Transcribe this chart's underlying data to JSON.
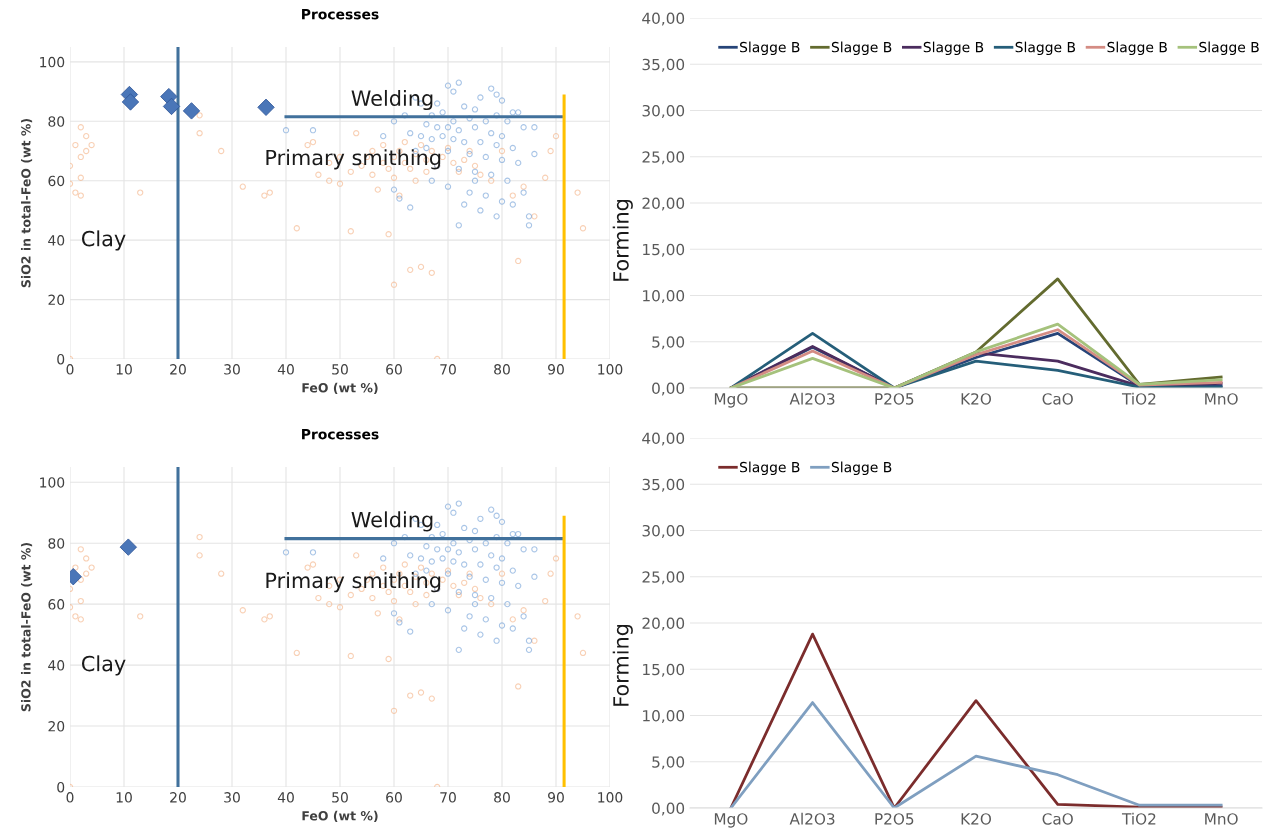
{
  "chart_data": [
    {
      "type": "scatter",
      "title": "Processes",
      "xlabel": "FeO (wt %)",
      "ylabel": "SiO2 in total-FeO (wt %)",
      "xlim": [
        0,
        100
      ],
      "ylim": [
        0,
        105
      ],
      "xticks": [
        0,
        10,
        20,
        30,
        40,
        50,
        60,
        70,
        80,
        90,
        100
      ],
      "yticks": [
        0,
        20,
        40,
        60,
        80,
        100
      ],
      "grid": true,
      "annotations": [
        "Welding",
        "Primary smithing",
        "Clay",
        "Forming"
      ],
      "series": [
        {
          "type": "scatter",
          "marker": "circle",
          "color": "#f4b183",
          "x": [
            0,
            0,
            1,
            2,
            2,
            3,
            3,
            4,
            1,
            2,
            2,
            13,
            24,
            24,
            28,
            32,
            36,
            37,
            42,
            44,
            45,
            46,
            48,
            48,
            50,
            50,
            52,
            52,
            53,
            54,
            55,
            56,
            56,
            57,
            58,
            58,
            59,
            59,
            60,
            60,
            60,
            61,
            61,
            62,
            62,
            63,
            63,
            64,
            64,
            65,
            65,
            66,
            66,
            67,
            67,
            68,
            69,
            70,
            71,
            72,
            73,
            74,
            75,
            76,
            78,
            80,
            82,
            83,
            84,
            86,
            88,
            89,
            90,
            94,
            95,
            68,
            0
          ],
          "values": [
            65,
            59,
            72,
            78,
            68,
            70,
            75,
            72,
            56,
            55,
            61,
            56,
            82,
            76,
            70,
            58,
            55,
            56,
            44,
            72,
            73,
            62,
            60,
            66,
            68,
            59,
            63,
            43,
            76,
            65,
            68,
            62,
            70,
            57,
            66,
            72,
            64,
            42,
            68,
            61,
            25,
            70,
            55,
            66,
            73,
            64,
            30,
            69,
            60,
            72,
            31,
            67,
            63,
            70,
            29,
            65,
            68,
            71,
            66,
            63,
            67,
            70,
            65,
            62,
            60,
            70,
            55,
            33,
            58,
            48,
            61,
            70,
            75,
            56,
            44,
            0,
            0
          ]
        },
        {
          "type": "scatter",
          "marker": "circle",
          "color": "#6f9fd6",
          "x": [
            70,
            71,
            72,
            78,
            79,
            76,
            80,
            64,
            65,
            68,
            73,
            75,
            82,
            83,
            67,
            69,
            71,
            74,
            77,
            79,
            81,
            66,
            68,
            70,
            72,
            75,
            78,
            80,
            84,
            86,
            63,
            65,
            67,
            69,
            71,
            73,
            76,
            79,
            82,
            64,
            66,
            70,
            74,
            77,
            80,
            83,
            68,
            72,
            75,
            78,
            81,
            70,
            74,
            77,
            80,
            73,
            76,
            79,
            85,
            85,
            82,
            63,
            61,
            60,
            58,
            60,
            62,
            45,
            40,
            84,
            72,
            75,
            67,
            86
          ],
          "values": [
            92,
            90,
            93,
            91,
            89,
            88,
            87,
            88,
            86,
            86,
            85,
            84,
            83,
            83,
            82,
            83,
            80,
            81,
            80,
            82,
            80,
            79,
            78,
            78,
            77,
            78,
            76,
            75,
            78,
            78,
            76,
            75,
            74,
            75,
            74,
            73,
            73,
            72,
            71,
            70,
            71,
            70,
            69,
            68,
            67,
            66,
            65,
            64,
            63,
            62,
            60,
            58,
            56,
            55,
            53,
            52,
            50,
            48,
            48,
            45,
            52,
            51,
            54,
            57,
            75,
            80,
            82,
            77,
            77,
            56,
            45,
            60,
            60,
            69
          ]
        },
        {
          "type": "scatter",
          "marker": "diamond",
          "color": "#4a76b8",
          "x": [
            11,
            11.2,
            18.3,
            18.8,
            22.5,
            36.3
          ],
          "values": [
            89,
            86.5,
            88.3,
            85,
            83.5,
            84.7
          ]
        },
        {
          "type": "line",
          "color": "#41719c",
          "x": [
            20,
            20
          ],
          "values": [
            0,
            105
          ]
        },
        {
          "type": "line",
          "color": "#41719c",
          "x": [
            40,
            91
          ],
          "values": [
            81.5,
            81.5
          ]
        },
        {
          "type": "line",
          "color": "#ffc000",
          "x": [
            91.5,
            91.5
          ],
          "values": [
            0,
            88.5
          ]
        }
      ]
    },
    {
      "type": "line",
      "categories": [
        "MgO",
        "Al2O3",
        "P2O5",
        "K2O",
        "CaO",
        "TiO2",
        "MnO"
      ],
      "ylim": [
        0,
        40
      ],
      "yticks": [
        {
          "value": 0,
          "label": "0,00"
        },
        {
          "value": 5,
          "label": "5,00"
        },
        {
          "value": 10,
          "label": "10,00"
        },
        {
          "value": 15,
          "label": "15,00"
        },
        {
          "value": 20,
          "label": "20,00"
        },
        {
          "value": 25,
          "label": "25,00"
        },
        {
          "value": 30,
          "label": "30,00"
        },
        {
          "value": 35,
          "label": "35,00"
        },
        {
          "value": 40,
          "label": "40,00"
        }
      ],
      "grid": "y",
      "legend": "top left",
      "series": [
        {
          "name": "Slagge B",
          "color": "#264478",
          "values": [
            0,
            4.4,
            0,
            3.3,
            5.9,
            0.2,
            0.2
          ]
        },
        {
          "name": "Slagge B",
          "color": "#636b2f",
          "values": [
            0,
            0,
            0,
            3.9,
            11.8,
            0.4,
            1.2
          ]
        },
        {
          "name": "Slagge B",
          "color": "#4b2c5e",
          "values": [
            0,
            4.5,
            0,
            3.8,
            2.9,
            0.2,
            0.5
          ]
        },
        {
          "name": "Slagge B",
          "color": "#255e79",
          "values": [
            0,
            5.9,
            0,
            2.9,
            1.9,
            0.1,
            0.1
          ]
        },
        {
          "name": "Slagge B",
          "color": "#d48c84",
          "values": [
            0,
            4.0,
            0,
            3.6,
            6.3,
            0.3,
            0.6
          ]
        },
        {
          "name": "Slagge B",
          "color": "#a5c27c",
          "values": [
            0,
            3.2,
            0,
            3.9,
            6.9,
            0.4,
            0.9
          ]
        }
      ]
    },
    {
      "type": "scatter",
      "title": "Processes",
      "xlabel": "FeO (wt %)",
      "ylabel": "SiO2 in total-FeO (wt %)",
      "xlim": [
        0,
        100
      ],
      "ylim": [
        0,
        105
      ],
      "xticks": [
        0,
        10,
        20,
        30,
        40,
        50,
        60,
        70,
        80,
        90,
        100
      ],
      "yticks": [
        0,
        20,
        40,
        60,
        80,
        100
      ],
      "grid": true,
      "annotations": [
        "Welding",
        "Primary smithing",
        "Clay",
        "Forming"
      ],
      "series": [
        {
          "type": "scatter",
          "marker": "circle",
          "color": "#f4b183",
          "x": [
            0,
            0,
            1,
            2,
            2,
            3,
            3,
            4,
            1,
            2,
            2,
            13,
            24,
            24,
            28,
            32,
            36,
            37,
            42,
            44,
            45,
            46,
            48,
            48,
            50,
            50,
            52,
            52,
            53,
            54,
            55,
            56,
            56,
            57,
            58,
            58,
            59,
            59,
            60,
            60,
            60,
            61,
            61,
            62,
            62,
            63,
            63,
            64,
            64,
            65,
            65,
            66,
            66,
            67,
            67,
            68,
            69,
            70,
            71,
            72,
            73,
            74,
            75,
            76,
            78,
            80,
            82,
            83,
            84,
            86,
            88,
            89,
            90,
            94,
            95,
            68,
            0
          ],
          "values": [
            65,
            59,
            72,
            78,
            68,
            70,
            75,
            72,
            56,
            55,
            61,
            56,
            82,
            76,
            70,
            58,
            55,
            56,
            44,
            72,
            73,
            62,
            60,
            66,
            68,
            59,
            63,
            43,
            76,
            65,
            68,
            62,
            70,
            57,
            66,
            72,
            64,
            42,
            68,
            61,
            25,
            70,
            55,
            66,
            73,
            64,
            30,
            69,
            60,
            72,
            31,
            67,
            63,
            70,
            29,
            65,
            68,
            71,
            66,
            63,
            67,
            70,
            65,
            62,
            60,
            70,
            55,
            33,
            58,
            48,
            61,
            70,
            75,
            56,
            44,
            0,
            0
          ]
        },
        {
          "type": "scatter",
          "marker": "circle",
          "color": "#6f9fd6",
          "x": [
            70,
            71,
            72,
            78,
            79,
            76,
            80,
            64,
            65,
            68,
            73,
            75,
            82,
            83,
            67,
            69,
            71,
            74,
            77,
            79,
            81,
            66,
            68,
            70,
            72,
            75,
            78,
            80,
            84,
            86,
            63,
            65,
            67,
            69,
            71,
            73,
            76,
            79,
            82,
            64,
            66,
            70,
            74,
            77,
            80,
            83,
            68,
            72,
            75,
            78,
            81,
            70,
            74,
            77,
            80,
            73,
            76,
            79,
            85,
            85,
            82,
            63,
            61,
            60,
            58,
            60,
            62,
            45,
            40,
            84,
            72,
            75,
            67,
            86
          ],
          "values": [
            92,
            90,
            93,
            91,
            89,
            88,
            87,
            88,
            86,
            86,
            85,
            84,
            83,
            83,
            82,
            83,
            80,
            81,
            80,
            82,
            80,
            79,
            78,
            78,
            77,
            78,
            76,
            75,
            78,
            78,
            76,
            75,
            74,
            75,
            74,
            73,
            73,
            72,
            71,
            70,
            71,
            70,
            69,
            68,
            67,
            66,
            65,
            64,
            63,
            62,
            60,
            58,
            56,
            55,
            53,
            52,
            50,
            48,
            48,
            45,
            52,
            51,
            54,
            57,
            75,
            80,
            82,
            77,
            77,
            56,
            45,
            60,
            60,
            69
          ]
        },
        {
          "type": "scatter",
          "marker": "diamond",
          "color": "#4a76b8",
          "x": [
            0.6,
            10.8
          ],
          "values": [
            69,
            78.7
          ]
        },
        {
          "type": "line",
          "color": "#41719c",
          "x": [
            20,
            20
          ],
          "values": [
            0,
            105
          ]
        },
        {
          "type": "line",
          "color": "#41719c",
          "x": [
            40,
            91
          ],
          "values": [
            81.5,
            81.5
          ]
        },
        {
          "type": "line",
          "color": "#ffc000",
          "x": [
            91.5,
            91.5
          ],
          "values": [
            0,
            88.5
          ]
        }
      ]
    },
    {
      "type": "line",
      "categories": [
        "MgO",
        "Al2O3",
        "P2O5",
        "K2O",
        "CaO",
        "TiO2",
        "MnO"
      ],
      "ylim": [
        0,
        40
      ],
      "yticks": [
        {
          "value": 0,
          "label": "0,00"
        },
        {
          "value": 5,
          "label": "5,00"
        },
        {
          "value": 10,
          "label": "10,00"
        },
        {
          "value": 15,
          "label": "15,00"
        },
        {
          "value": 20,
          "label": "20,00"
        },
        {
          "value": 25,
          "label": "25,00"
        },
        {
          "value": 30,
          "label": "30,00"
        },
        {
          "value": 35,
          "label": "35,00"
        },
        {
          "value": 40,
          "label": "40,00"
        }
      ],
      "grid": "y",
      "legend": "top left",
      "series": [
        {
          "name": "Slagge B",
          "color": "#7b2c2c",
          "values": [
            0,
            18.8,
            0,
            11.6,
            0.4,
            0.1,
            0.1
          ]
        },
        {
          "name": "Slagge B",
          "color": "#7f9fc0",
          "values": [
            0,
            11.4,
            0,
            5.6,
            3.6,
            0.3,
            0.3
          ]
        }
      ]
    }
  ]
}
